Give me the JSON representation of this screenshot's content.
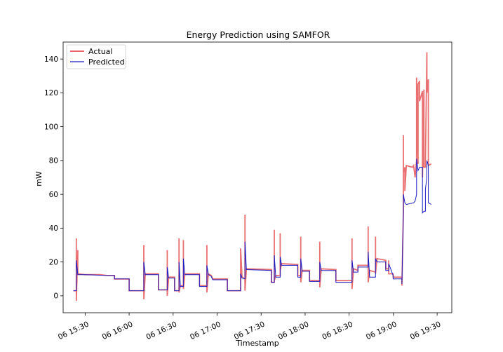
{
  "chart_data": {
    "type": "line",
    "title": "Energy Prediction using SAMFOR",
    "xlabel": "Timestamp",
    "ylabel": "mW",
    "xlim": [
      "06 15:15",
      "06 19:40"
    ],
    "ylim": [
      -10,
      150
    ],
    "x_ticks": [
      "06 15:30",
      "06 16:00",
      "06 16:30",
      "06 17:00",
      "06 17:30",
      "06 18:00",
      "06 18:30",
      "06 19:00",
      "06 19:30"
    ],
    "y_ticks": [
      0,
      20,
      40,
      60,
      80,
      100,
      120,
      140
    ],
    "legend_position": "top-left",
    "grid": false,
    "series": [
      {
        "name": "Actual",
        "color": "#e8686a",
        "points": [
          [
            "06 15:22",
            3
          ],
          [
            "06 15:24",
            3
          ],
          [
            "06 15:24",
            34
          ],
          [
            "06 15:24",
            -3
          ],
          [
            "06 15:25",
            27
          ],
          [
            "06 15:25",
            13
          ],
          [
            "06 15:30",
            12.5
          ],
          [
            "06 15:40",
            12.5
          ],
          [
            "06 15:45",
            12
          ],
          [
            "06 15:50",
            12
          ],
          [
            "06 15:50",
            10
          ],
          [
            "06 16:00",
            10
          ],
          [
            "06 16:00",
            3
          ],
          [
            "06 16:10",
            3
          ],
          [
            "06 16:10",
            30
          ],
          [
            "06 16:10",
            -2
          ],
          [
            "06 16:11",
            13
          ],
          [
            "06 16:20",
            13
          ],
          [
            "06 16:20",
            3.5
          ],
          [
            "06 16:26",
            3.5
          ],
          [
            "06 16:26",
            27
          ],
          [
            "06 16:26",
            0
          ],
          [
            "06 16:27",
            11
          ],
          [
            "06 16:31",
            11
          ],
          [
            "06 16:31",
            3
          ],
          [
            "06 16:34",
            3
          ],
          [
            "06 16:34",
            34
          ],
          [
            "06 16:34",
            2
          ],
          [
            "06 16:35",
            6
          ],
          [
            "06 16:37",
            6
          ],
          [
            "06 16:37",
            33
          ],
          [
            "06 16:37",
            4
          ],
          [
            "06 16:38",
            13
          ],
          [
            "06 16:48",
            13
          ],
          [
            "06 16:48",
            6
          ],
          [
            "06 16:53",
            6
          ],
          [
            "06 16:53",
            30
          ],
          [
            "06 16:53",
            2
          ],
          [
            "06 16:54",
            13
          ],
          [
            "06 16:56",
            12
          ],
          [
            "06 16:57",
            10
          ],
          [
            "06 17:07",
            10
          ],
          [
            "06 17:07",
            3
          ],
          [
            "06 17:16",
            3
          ],
          [
            "06 17:16",
            28
          ],
          [
            "06 17:17",
            11
          ],
          [
            "06 17:19",
            10
          ],
          [
            "06 17:19",
            48
          ],
          [
            "06 17:19",
            3
          ],
          [
            "06 17:20",
            16
          ],
          [
            "06 17:37",
            15.5
          ],
          [
            "06 17:37",
            8
          ],
          [
            "06 17:39",
            8
          ],
          [
            "06 17:39",
            39
          ],
          [
            "06 17:39",
            9
          ],
          [
            "06 17:40",
            12
          ],
          [
            "06 17:43",
            12
          ],
          [
            "06 17:43",
            37
          ],
          [
            "06 17:43",
            15
          ],
          [
            "06 17:44",
            19
          ],
          [
            "06 17:55",
            18.5
          ],
          [
            "06 17:55",
            12
          ],
          [
            "06 17:57",
            12
          ],
          [
            "06 17:57",
            35
          ],
          [
            "06 17:57",
            8
          ],
          [
            "06 17:58",
            15
          ],
          [
            "06 18:03",
            15
          ],
          [
            "06 18:03",
            9
          ],
          [
            "06 18:10",
            9
          ],
          [
            "06 18:10",
            32
          ],
          [
            "06 18:10",
            5
          ],
          [
            "06 18:11",
            16
          ],
          [
            "06 18:21",
            15.5
          ],
          [
            "06 18:21",
            9
          ],
          [
            "06 18:32",
            9
          ],
          [
            "06 18:32",
            34
          ],
          [
            "06 18:32",
            4
          ],
          [
            "06 18:33",
            16
          ],
          [
            "06 18:36",
            15
          ],
          [
            "06 18:36",
            18
          ],
          [
            "06 18:43",
            18
          ],
          [
            "06 18:43",
            41
          ],
          [
            "06 18:43",
            8
          ],
          [
            "06 18:44",
            15
          ],
          [
            "06 18:48",
            14
          ],
          [
            "06 18:48",
            35
          ],
          [
            "06 18:48",
            13
          ],
          [
            "06 18:49",
            22
          ],
          [
            "06 18:55",
            21
          ],
          [
            "06 18:55",
            16
          ],
          [
            "06 18:57",
            16
          ],
          [
            "06 18:57",
            21
          ],
          [
            "06 18:57",
            13
          ],
          [
            "06 19:00",
            13
          ],
          [
            "06 19:00",
            11
          ],
          [
            "06 19:06",
            11
          ],
          [
            "06 19:06",
            6
          ],
          [
            "06 19:07",
            50
          ],
          [
            "06 19:07",
            95
          ],
          [
            "06 19:07",
            73
          ],
          [
            "06 19:08",
            76
          ],
          [
            "06 19:08",
            62
          ],
          [
            "06 19:09",
            77
          ],
          [
            "06 19:13",
            76
          ],
          [
            "06 19:14",
            77
          ],
          [
            "06 19:15",
            70
          ],
          [
            "06 19:16",
            80
          ],
          [
            "06 19:16",
            129
          ],
          [
            "06 19:17",
            78
          ],
          [
            "06 19:17",
            125
          ],
          [
            "06 19:18",
            127
          ],
          [
            "06 19:18",
            115
          ],
          [
            "06 19:19",
            118
          ],
          [
            "06 19:20",
            121
          ],
          [
            "06 19:20",
            70
          ],
          [
            "06 19:21",
            122
          ],
          [
            "06 19:21",
            76
          ],
          [
            "06 19:22",
            76
          ],
          [
            "06 19:22",
            79
          ],
          [
            "06 19:23",
            144
          ],
          [
            "06 19:23",
            120
          ],
          [
            "06 19:24",
            128
          ],
          [
            "06 19:24",
            77
          ],
          [
            "06 19:26",
            78
          ]
        ]
      },
      {
        "name": "Predicted",
        "color": "#1d1dc4",
        "points": [
          [
            "06 15:22",
            3
          ],
          [
            "06 15:24",
            3
          ],
          [
            "06 15:24",
            21
          ],
          [
            "06 15:25",
            12.5
          ],
          [
            "06 15:30",
            12.5
          ],
          [
            "06 15:45",
            12
          ],
          [
            "06 15:50",
            12
          ],
          [
            "06 15:50",
            10
          ],
          [
            "06 16:00",
            10
          ],
          [
            "06 16:00",
            3
          ],
          [
            "06 16:10",
            3
          ],
          [
            "06 16:10",
            20
          ],
          [
            "06 16:11",
            12.5
          ],
          [
            "06 16:20",
            12.5
          ],
          [
            "06 16:20",
            3.5
          ],
          [
            "06 16:26",
            3.5
          ],
          [
            "06 16:26",
            17
          ],
          [
            "06 16:27",
            10.5
          ],
          [
            "06 16:31",
            10.5
          ],
          [
            "06 16:31",
            3
          ],
          [
            "06 16:34",
            3
          ],
          [
            "06 16:34",
            20
          ],
          [
            "06 16:35",
            5.5
          ],
          [
            "06 16:37",
            5.5
          ],
          [
            "06 16:37",
            22
          ],
          [
            "06 16:38",
            12.5
          ],
          [
            "06 16:48",
            12.5
          ],
          [
            "06 16:48",
            5.5
          ],
          [
            "06 16:53",
            5.5
          ],
          [
            "06 16:53",
            18
          ],
          [
            "06 16:54",
            12.5
          ],
          [
            "06 16:56",
            11.5
          ],
          [
            "06 16:57",
            9.5
          ],
          [
            "06 17:07",
            9.5
          ],
          [
            "06 17:07",
            3
          ],
          [
            "06 17:16",
            3
          ],
          [
            "06 17:16",
            13
          ],
          [
            "06 17:17",
            10.5
          ],
          [
            "06 17:19",
            10
          ],
          [
            "06 17:19",
            32
          ],
          [
            "06 17:20",
            15.5
          ],
          [
            "06 17:37",
            15
          ],
          [
            "06 17:37",
            8
          ],
          [
            "06 17:39",
            8
          ],
          [
            "06 17:39",
            24
          ],
          [
            "06 17:40",
            11
          ],
          [
            "06 17:43",
            11
          ],
          [
            "06 17:43",
            23
          ],
          [
            "06 17:44",
            18
          ],
          [
            "06 17:55",
            18
          ],
          [
            "06 17:55",
            11
          ],
          [
            "06 17:57",
            11
          ],
          [
            "06 17:57",
            22
          ],
          [
            "06 17:58",
            14.5
          ],
          [
            "06 18:03",
            14.5
          ],
          [
            "06 18:03",
            8.5
          ],
          [
            "06 18:10",
            8.5
          ],
          [
            "06 18:10",
            20
          ],
          [
            "06 18:11",
            15
          ],
          [
            "06 18:21",
            15
          ],
          [
            "06 18:21",
            8
          ],
          [
            "06 18:32",
            8
          ],
          [
            "06 18:32",
            21
          ],
          [
            "06 18:33",
            14
          ],
          [
            "06 18:36",
            14
          ],
          [
            "06 18:36",
            17
          ],
          [
            "06 18:43",
            17
          ],
          [
            "06 18:43",
            26
          ],
          [
            "06 18:44",
            11
          ],
          [
            "06 18:48",
            11
          ],
          [
            "06 18:48",
            22
          ],
          [
            "06 18:49",
            20
          ],
          [
            "06 18:55",
            20
          ],
          [
            "06 18:55",
            15
          ],
          [
            "06 18:57",
            15
          ],
          [
            "06 18:57",
            19
          ],
          [
            "06 19:00",
            12
          ],
          [
            "06 19:00",
            10
          ],
          [
            "06 19:06",
            10
          ],
          [
            "06 19:06",
            7
          ],
          [
            "06 19:07",
            50
          ],
          [
            "06 19:07",
            60
          ],
          [
            "06 19:08",
            55
          ],
          [
            "06 19:09",
            54
          ],
          [
            "06 19:14",
            55
          ],
          [
            "06 19:15",
            56
          ],
          [
            "06 19:16",
            60
          ],
          [
            "06 19:16",
            81
          ],
          [
            "06 19:17",
            74
          ],
          [
            "06 19:18",
            76
          ],
          [
            "06 19:20",
            76
          ],
          [
            "06 19:20",
            49
          ],
          [
            "06 19:21",
            50
          ],
          [
            "06 19:22",
            50
          ],
          [
            "06 19:22",
            63
          ],
          [
            "06 19:23",
            70
          ],
          [
            "06 19:23",
            80
          ],
          [
            "06 19:24",
            77
          ],
          [
            "06 19:24",
            55
          ],
          [
            "06 19:26",
            54
          ]
        ]
      }
    ]
  }
}
